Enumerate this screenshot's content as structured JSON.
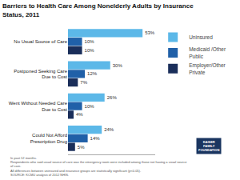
{
  "chart_data": {
    "type": "bar",
    "orientation": "horizontal",
    "title": "Barriers to Health Care Among Nonelderly Adults by Insurance\nStatus, 2011",
    "categories": [
      "No Usual Source of Care",
      "Postponed Seeking Care\nDue to Cost",
      "Went Without Needed Care\nDue to Cost",
      "Could Not Afford\nPrescription Drug"
    ],
    "series": [
      {
        "name": "Uninsured",
        "color": "#5cb8e8",
        "values": [
          53,
          30,
          26,
          24
        ],
        "value_labels": [
          "53%",
          "30%",
          "26%",
          "24%"
        ]
      },
      {
        "name": "Medicaid /Other\nPublic",
        "color": "#2060a8",
        "values": [
          10,
          12,
          10,
          14
        ],
        "value_labels": [
          "10%",
          "12%",
          "10%",
          "14%"
        ]
      },
      {
        "name": "Employer/Other\nPrivate",
        "color": "#1a2e5a",
        "values": [
          10,
          7,
          4,
          5
        ],
        "value_labels": [
          "10%",
          "7%",
          "4%",
          "5%"
        ]
      }
    ],
    "xlim": [
      0,
      62
    ],
    "data_labels": true,
    "tick_labels": "y",
    "grid": false,
    "legend": "right",
    "annotations": [
      "In past 12 months.\nRespondents who said usual source of care was the emergency room were included among those not having a usual source\nof care.\nAll differences between uninsured and insurance groups are statistically significant (p<0.05).\nSOURCE: KCMU analysis of 2012 NHIS.",
      "KAISER\nFAMILY\nFOUNDATION"
    ]
  }
}
